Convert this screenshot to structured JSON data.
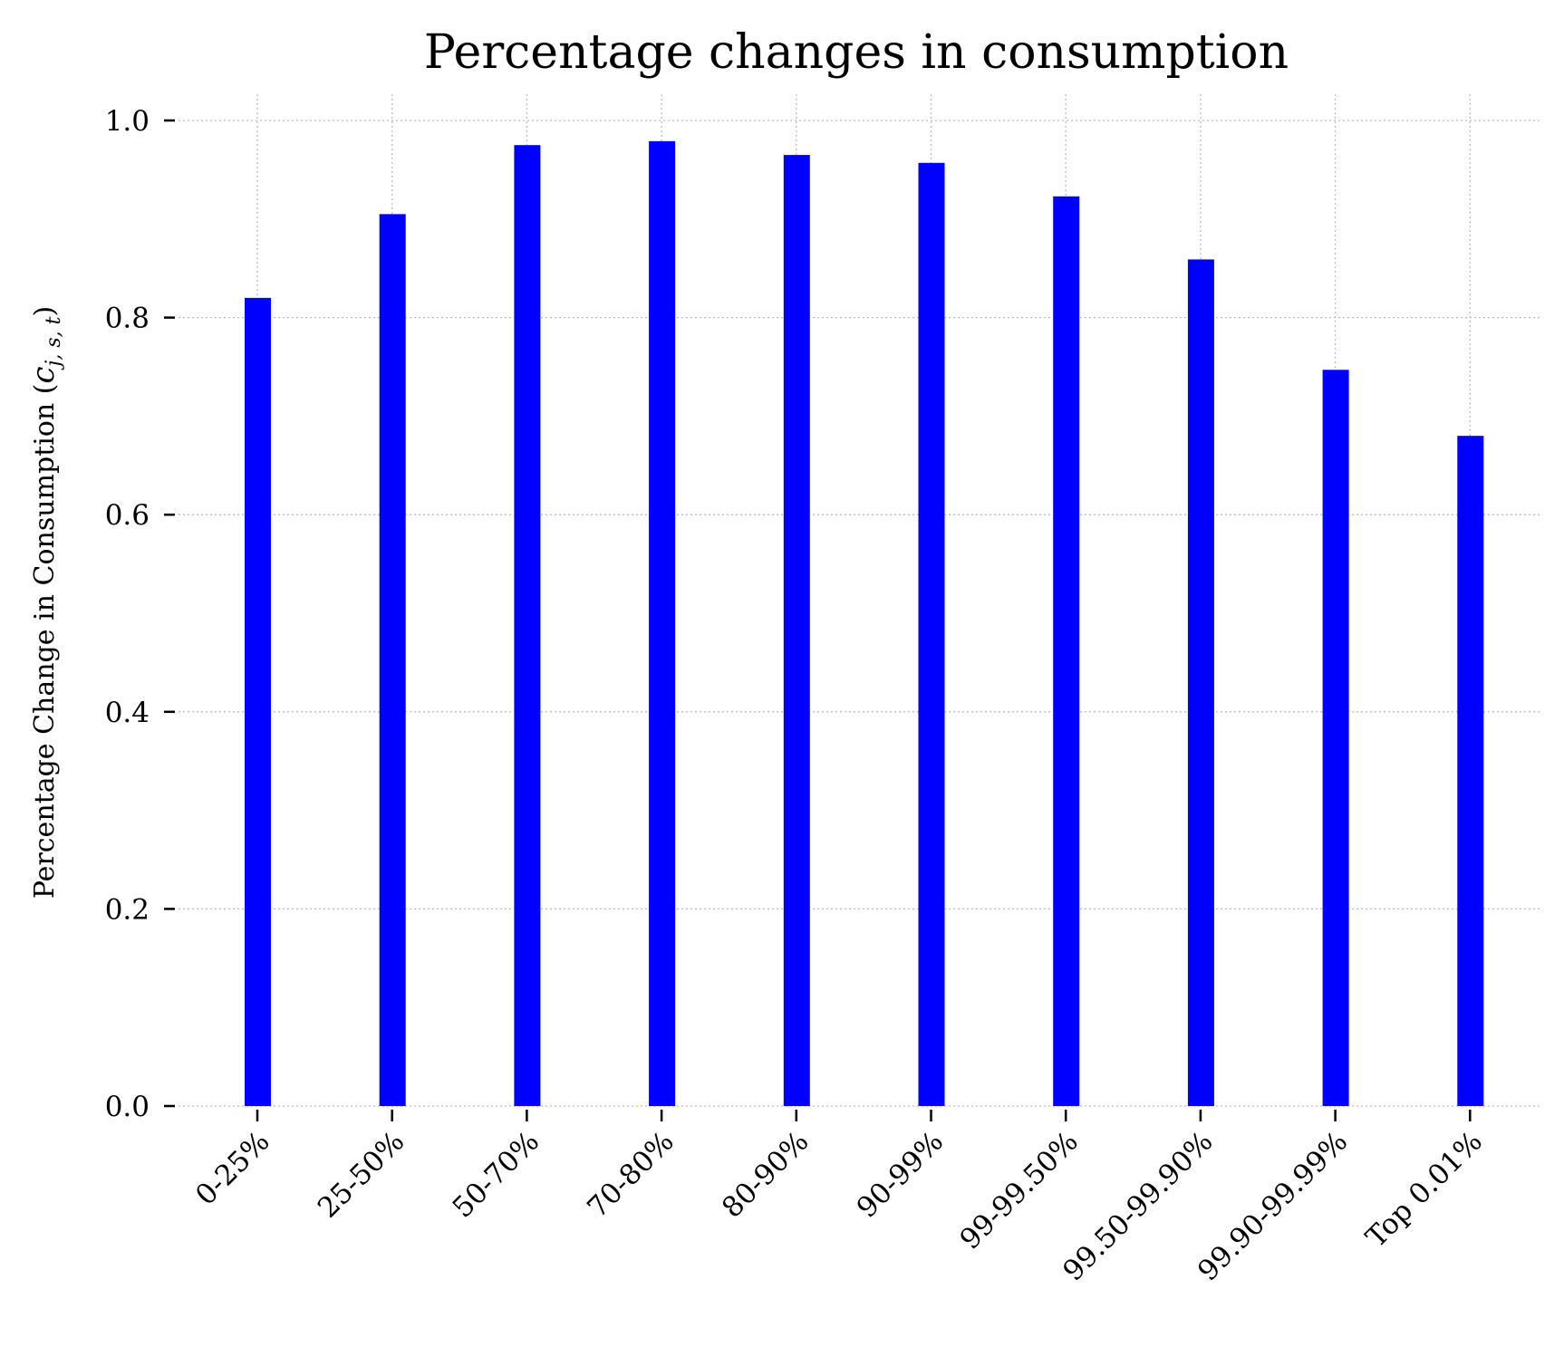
{
  "chart_data": {
    "type": "bar",
    "title": "Percentage changes in consumption",
    "xlabel": "",
    "ylabel_text": "Percentage Change in Consumption (",
    "ylabel_symbol": "c",
    "ylabel_subscript": "j, s, t",
    "ylabel_close": ")",
    "categories": [
      "0-25%",
      "25-50%",
      "50-70%",
      "70-80%",
      "80-90%",
      "90-99%",
      "99-99.50%",
      "99.50-99.90%",
      "99.90-99.99%",
      "Top 0.01%"
    ],
    "values": [
      0.82,
      0.905,
      0.975,
      0.979,
      0.965,
      0.957,
      0.923,
      0.859,
      0.747,
      0.68
    ],
    "ylim": [
      0.0,
      1.0
    ],
    "yticks": [
      "0.0",
      "0.2",
      "0.4",
      "0.6",
      "0.8",
      "1.0"
    ],
    "grid": true,
    "bar_color": "#0000ff",
    "grid_color": "#bdbdbd"
  }
}
